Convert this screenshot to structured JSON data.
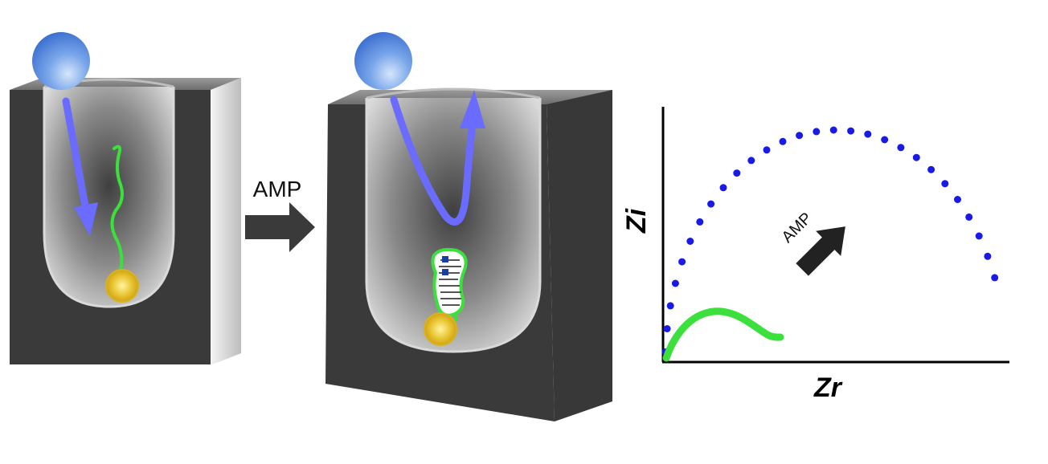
{
  "arrow_label": "AMP",
  "plot": {
    "xlabel": "Zr",
    "ylabel": "Zi",
    "arrow_label": "AMP"
  },
  "colors": {
    "bead": "#4f86e0",
    "flow_arrow": "#6b6bff",
    "aptamer": "#3ce03c",
    "dots": "#1a1ae6",
    "gold": "#e8c020",
    "electrode": "#3c3c3c"
  },
  "icons": [
    "redox-probe-sphere",
    "electron-flow-arrow",
    "aptamer-strand",
    "gold-nanoparticle"
  ]
}
